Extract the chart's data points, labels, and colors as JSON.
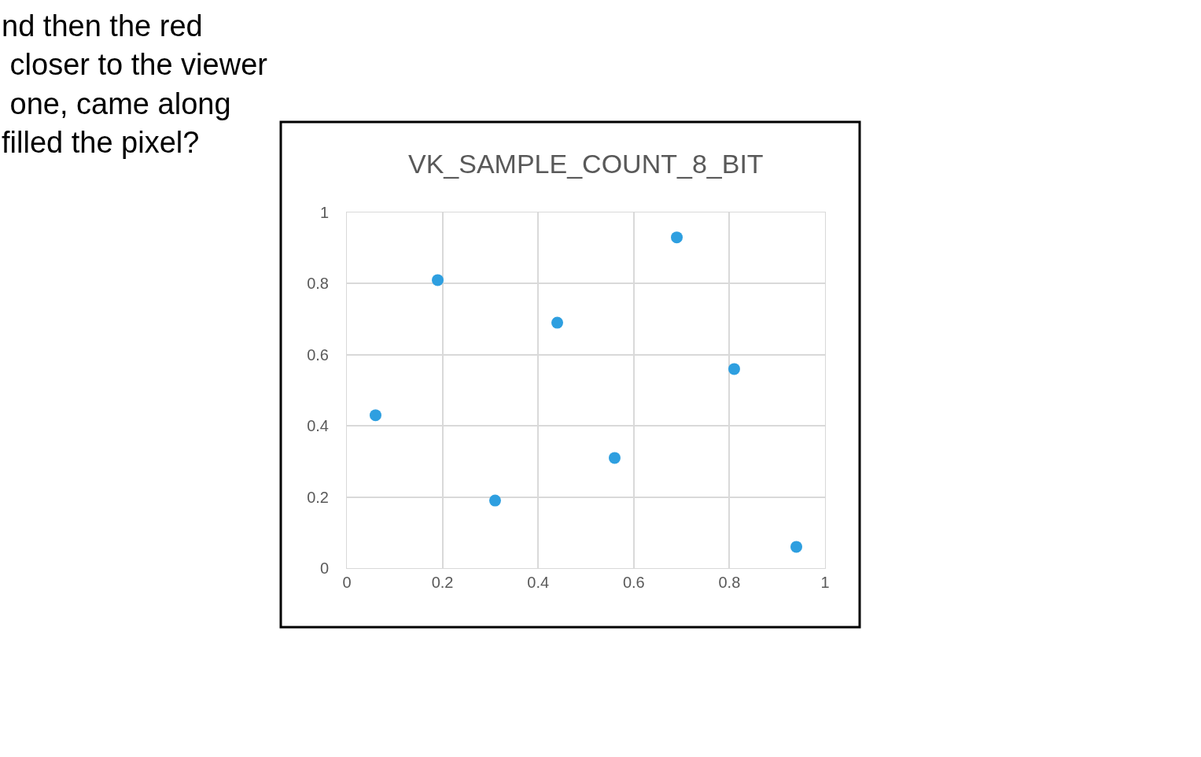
{
  "chart_data": {
    "type": "scatter",
    "title": "VK_SAMPLE_COUNT_8_BIT",
    "x": [
      0.56,
      0.44,
      0.81,
      0.31,
      0.19,
      0.06,
      0.69,
      0.94
    ],
    "values": [
      0.31,
      0.69,
      0.56,
      0.19,
      0.81,
      0.43,
      0.93,
      0.06
    ],
    "color": "#2e9fe0",
    "marker": "circle",
    "xlim": [
      0,
      1
    ],
    "xticks": [
      0,
      0.2,
      0.4,
      0.6,
      0.8,
      1
    ],
    "ylim": [
      0,
      1
    ],
    "yticks": [
      0,
      0.2,
      0.4,
      0.6,
      0.8,
      1
    ],
    "grid": true,
    "annotations": [
      "nd then the red\n closer to the viewer\n one, came along\nfilled the pixel?"
    ]
  }
}
